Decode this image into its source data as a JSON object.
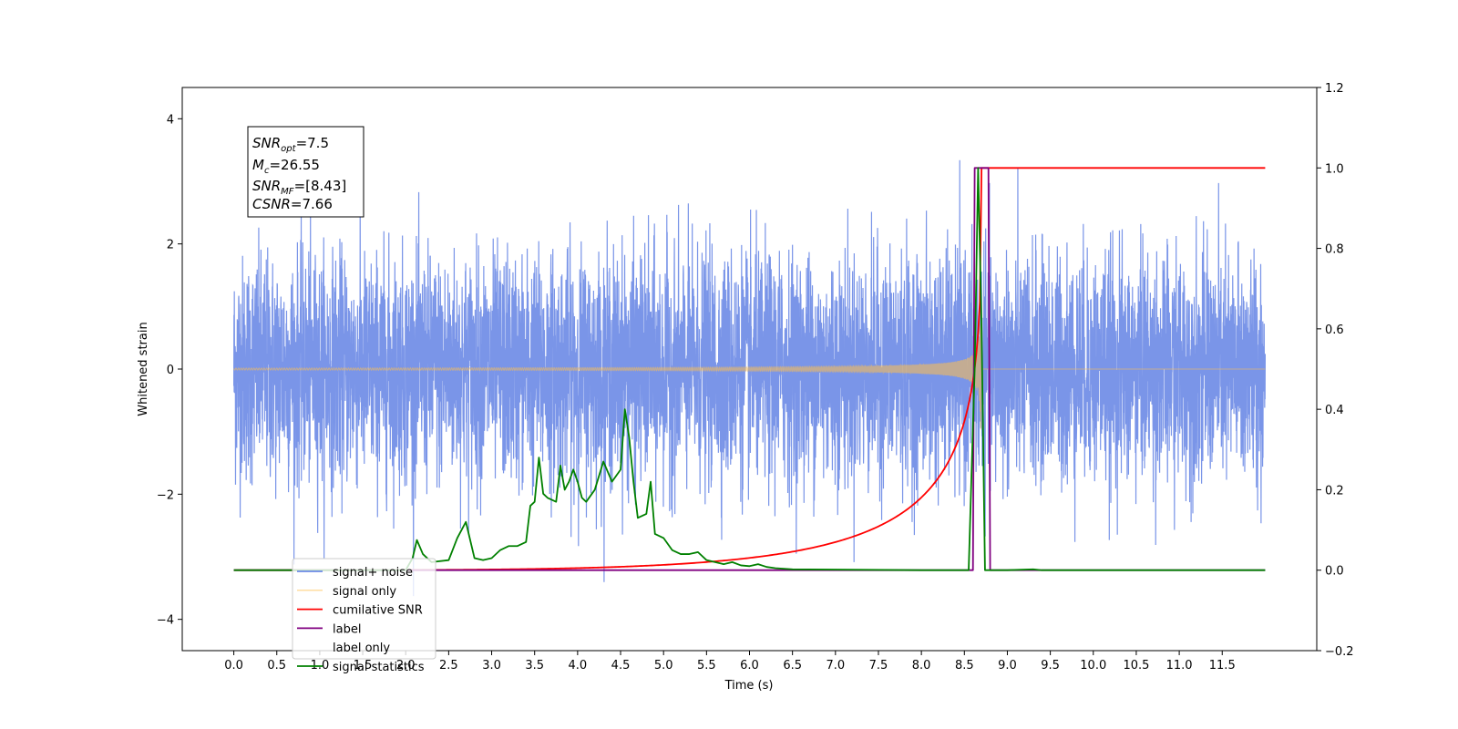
{
  "chart_data": {
    "type": "line",
    "title": "",
    "xlabel": "Time (s)",
    "ylabel": "Whitened strain",
    "xlim": [
      -0.6,
      12.6
    ],
    "ylim": [
      -4.5,
      4.5
    ],
    "y2lim": [
      -0.2,
      1.2
    ],
    "x_ticks": [
      "0.0",
      "0.5",
      "1.0",
      "1.5",
      "2.0",
      "2.5",
      "3.0",
      "3.5",
      "4.0",
      "4.5",
      "5.0",
      "5.5",
      "6.0",
      "6.5",
      "7.0",
      "7.5",
      "8.0",
      "8.5",
      "9.0",
      "9.5",
      "10.0",
      "10.5",
      "11.0",
      "11.5"
    ],
    "y_ticks": [
      "4",
      "2",
      "0",
      "−2",
      "−4"
    ],
    "y2_ticks": [
      "1.2",
      "1.0",
      "0.8",
      "0.6",
      "0.4",
      "0.2",
      "0.0",
      "−0.2"
    ],
    "grid": false,
    "legend_position": "bottom-left",
    "annotation": {
      "snr_opt": {
        "sym": "SNR",
        "sub": "opt",
        "value": "=7.5"
      },
      "mc": {
        "sym": "M",
        "sub": "c",
        "value": "=26.55"
      },
      "snr_mf": {
        "sym": "SNR",
        "sub": "MF",
        "value": "=[8.43]"
      },
      "csnr": {
        "sym": "CSNR",
        "value": "=7.66"
      }
    },
    "series": [
      {
        "name": "signal+ noise",
        "color": "#6b8ae6",
        "axis": "left",
        "description_level": "noise std approx 0.9, peaks to ±4"
      },
      {
        "name": "signal only",
        "color": "#ffc04d",
        "axis": "left",
        "chirp": {
          "t_start": 0.0,
          "t_merge": 8.7,
          "peak_amplitude": 1.0
        }
      },
      {
        "name": "cumilative SNR",
        "color": "#ff0000",
        "axis": "right",
        "x": [
          0.0,
          4.0,
          5.0,
          6.0,
          7.0,
          7.5,
          8.0,
          8.3,
          8.5,
          8.6,
          8.66,
          8.7,
          12.0
        ],
        "y": [
          0.0,
          0.0,
          0.03,
          0.08,
          0.14,
          0.18,
          0.25,
          0.33,
          0.45,
          0.58,
          0.75,
          1.0,
          1.0
        ]
      },
      {
        "name": "label",
        "color": "#800080",
        "axis": "right",
        "x": [
          0.0,
          8.6,
          8.62,
          8.78,
          8.8,
          12.0
        ],
        "y": [
          0.0,
          0.0,
          1.0,
          1.0,
          0.0,
          0.0
        ]
      },
      {
        "name": "label only",
        "color": "#ffffff",
        "axis": "right",
        "hidden_under_legend": true
      },
      {
        "name": "signal statistics",
        "color": "#008000",
        "axis": "right",
        "x": [
          0.0,
          2.0,
          2.08,
          2.13,
          2.2,
          2.3,
          2.5,
          2.6,
          2.7,
          2.8,
          2.9,
          3.0,
          3.1,
          3.2,
          3.3,
          3.4,
          3.45,
          3.5,
          3.55,
          3.6,
          3.65,
          3.75,
          3.8,
          3.85,
          3.9,
          3.95,
          4.0,
          4.05,
          4.1,
          4.2,
          4.3,
          4.4,
          4.5,
          4.55,
          4.6,
          4.65,
          4.7,
          4.8,
          4.85,
          4.9,
          5.0,
          5.1,
          5.2,
          5.3,
          5.4,
          5.5,
          5.6,
          5.7,
          5.8,
          5.9,
          6.0,
          6.1,
          6.2,
          6.3,
          6.5,
          8.0,
          8.55,
          8.62,
          8.66,
          8.7,
          8.74,
          8.8,
          9.0,
          9.3,
          9.4,
          12.0
        ],
        "y": [
          0.0,
          0.0,
          0.03,
          0.075,
          0.04,
          0.02,
          0.025,
          0.08,
          0.12,
          0.03,
          0.025,
          0.03,
          0.05,
          0.06,
          0.06,
          0.07,
          0.16,
          0.17,
          0.28,
          0.19,
          0.18,
          0.17,
          0.26,
          0.2,
          0.22,
          0.25,
          0.22,
          0.18,
          0.17,
          0.2,
          0.27,
          0.22,
          0.25,
          0.4,
          0.33,
          0.22,
          0.13,
          0.14,
          0.22,
          0.09,
          0.08,
          0.05,
          0.04,
          0.04,
          0.045,
          0.025,
          0.02,
          0.015,
          0.02,
          0.012,
          0.01,
          0.015,
          0.008,
          0.005,
          0.002,
          0.0,
          0.0,
          0.5,
          1.0,
          0.6,
          0.0,
          0.0,
          0.0,
          0.002,
          0.0,
          0.0
        ]
      }
    ]
  }
}
